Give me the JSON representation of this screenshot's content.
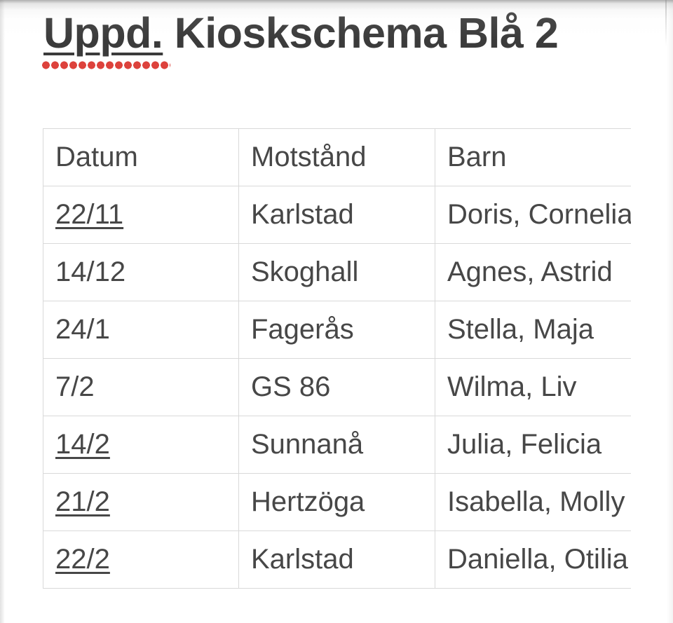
{
  "title": {
    "word_marked": "Uppd.",
    "rest": " Kioskschema Blå 2"
  },
  "table": {
    "columns": [
      "Datum",
      "Motstånd",
      "Barn"
    ],
    "rows": [
      {
        "datum": "22/11",
        "datum_underlined": true,
        "motstand": "Karlstad",
        "barn": "Doris, Cornelia"
      },
      {
        "datum": "14/12",
        "datum_underlined": false,
        "motstand": "Skoghall",
        "barn": "Agnes, Astrid"
      },
      {
        "datum": "24/1",
        "datum_underlined": false,
        "motstand": "Fagerås",
        "barn": "Stella, Maja"
      },
      {
        "datum": "7/2",
        "datum_underlined": false,
        "motstand": "GS 86",
        "barn": "Wilma, Liv"
      },
      {
        "datum": "14/2",
        "datum_underlined": true,
        "motstand": "Sunnanå",
        "barn": "Julia, Felicia"
      },
      {
        "datum": "21/2",
        "datum_underlined": true,
        "motstand": "Hertzöga",
        "barn": "Isabella, Molly"
      },
      {
        "datum": "22/2",
        "datum_underlined": true,
        "motstand": "Karlstad",
        "barn": "Daniella, Otilia"
      }
    ]
  },
  "colors": {
    "background": "#ffffff",
    "title_text": "#3b3b3b",
    "body_text": "#474747",
    "table_border": "#d9d9d9",
    "spellcheck_red": "#dd423c"
  }
}
